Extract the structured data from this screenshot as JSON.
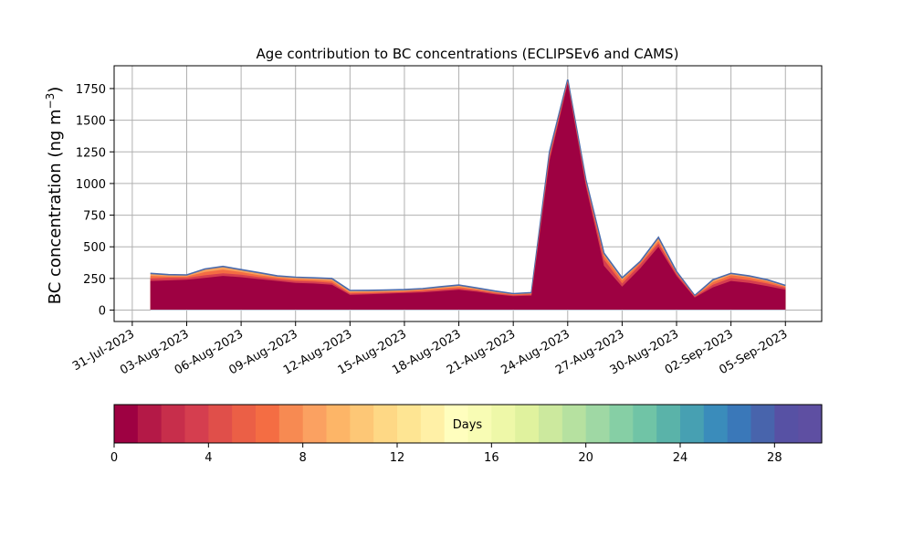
{
  "chart_data": {
    "type": "area",
    "title": "Age contribution to BC concentrations (ECLIPSEv6 and CAMS)",
    "ylabel": "BC concentration (ng m",
    "ylabel_sup": "−3",
    "ylabel_close": ")",
    "xlim": [
      "2023-07-30",
      "2023-09-07"
    ],
    "ylim": [
      -90,
      1930
    ],
    "grid": true,
    "x_ticks": [
      "2023-07-31",
      "2023-08-03",
      "2023-08-06",
      "2023-08-09",
      "2023-08-12",
      "2023-08-15",
      "2023-08-18",
      "2023-08-21",
      "2023-08-24",
      "2023-08-27",
      "2023-08-30",
      "2023-09-02",
      "2023-09-05"
    ],
    "x_tick_labels": [
      "31-Jul-2023",
      "03-Aug-2023",
      "06-Aug-2023",
      "09-Aug-2023",
      "12-Aug-2023",
      "15-Aug-2023",
      "18-Aug-2023",
      "21-Aug-2023",
      "24-Aug-2023",
      "27-Aug-2023",
      "30-Aug-2023",
      "02-Sep-2023",
      "05-Sep-2023"
    ],
    "y_ticks": [
      0,
      250,
      500,
      750,
      1000,
      1250,
      1500,
      1750
    ],
    "y_tick_labels": [
      "0",
      "250",
      "500",
      "750",
      "1000",
      "1250",
      "1500",
      "1750"
    ],
    "x": [
      "2023-08-01",
      "2023-08-02",
      "2023-08-03",
      "2023-08-04",
      "2023-08-05",
      "2023-08-06",
      "2023-08-07",
      "2023-08-08",
      "2023-08-09",
      "2023-08-10",
      "2023-08-11",
      "2023-08-12",
      "2023-08-13",
      "2023-08-14",
      "2023-08-15",
      "2023-08-16",
      "2023-08-17",
      "2023-08-18",
      "2023-08-19",
      "2023-08-20",
      "2023-08-21",
      "2023-08-22",
      "2023-08-23",
      "2023-08-24",
      "2023-08-25",
      "2023-08-26",
      "2023-08-27",
      "2023-08-28",
      "2023-08-29",
      "2023-08-30",
      "2023-08-31",
      "2023-09-01",
      "2023-09-02",
      "2023-09-03",
      "2023-09-04",
      "2023-09-05"
    ],
    "series": [
      {
        "values": [
          230,
          235,
          240,
          255,
          270,
          260,
          245,
          230,
          215,
          210,
          200,
          120,
          125,
          130,
          135,
          140,
          150,
          160,
          145,
          125,
          110,
          115,
          1180,
          1790,
          980,
          350,
          185,
          330,
          500,
          270,
          100,
          180,
          230,
          215,
          190,
          160
        ]
      },
      {
        "values": [
          250,
          255,
          255,
          275,
          290,
          280,
          260,
          245,
          230,
          225,
          215,
          130,
          133,
          138,
          142,
          150,
          160,
          170,
          155,
          133,
          118,
          123,
          1210,
          1800,
          1000,
          400,
          210,
          360,
          525,
          285,
          107,
          200,
          255,
          237,
          210,
          175
        ]
      },
      {
        "values": [
          270,
          265,
          265,
          300,
          320,
          300,
          275,
          258,
          245,
          240,
          230,
          140,
          142,
          145,
          150,
          160,
          172,
          182,
          163,
          140,
          124,
          130,
          1230,
          1810,
          1015,
          430,
          235,
          375,
          545,
          295,
          111,
          220,
          275,
          257,
          225,
          185
        ]
      },
      {
        "values": [
          290,
          280,
          278,
          325,
          345,
          320,
          295,
          270,
          260,
          255,
          250,
          155,
          156,
          158,
          162,
          170,
          185,
          198,
          175,
          150,
          130,
          138,
          1250,
          1820,
          1030,
          450,
          255,
          385,
          575,
          305,
          115,
          240,
          290,
          270,
          240,
          195
        ]
      }
    ],
    "series_colors": [
      "#9e0142",
      "#d53e4f",
      "#f46d43",
      "#4a6aac"
    ],
    "colorbar": {
      "label": "Days",
      "min": 0,
      "max": 30,
      "ticks": [
        0,
        4,
        8,
        12,
        16,
        20,
        24,
        28
      ],
      "tick_labels": [
        "0",
        "4",
        "8",
        "12",
        "16",
        "20",
        "24",
        "28"
      ],
      "colors": [
        "#9e0142",
        "#b41947",
        "#c72e4b",
        "#d53e4f",
        "#e04f4a",
        "#eb5f46",
        "#f46d43",
        "#f78a52",
        "#fba161",
        "#fdb567",
        "#fdc776",
        "#fed885",
        "#fee593",
        "#fff0a6",
        "#fffebe",
        "#f8fcb4",
        "#eef8a8",
        "#e0f29e",
        "#cce99e",
        "#b6e1a0",
        "#9fd8a4",
        "#86cfa5",
        "#70c4a6",
        "#5ab3a9",
        "#47a0b2",
        "#3a8cbb",
        "#3a78b9",
        "#4864ac",
        "#5751a4",
        "#5e4fa2"
      ]
    }
  }
}
